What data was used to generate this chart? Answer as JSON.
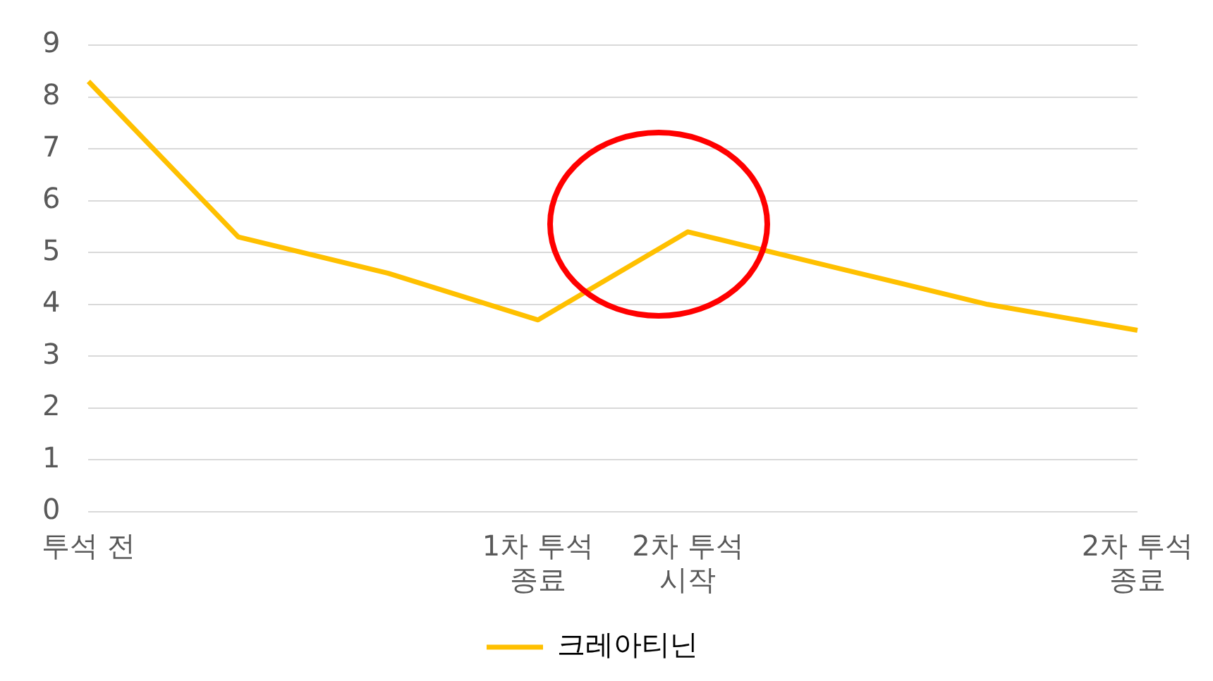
{
  "chart_data": {
    "type": "line",
    "categories": [
      "투석 전",
      null,
      null,
      "1차 투석 종료",
      "2차 투석 시작",
      null,
      null,
      "2차 투석 종료"
    ],
    "series": [
      {
        "name": "크레아티닌",
        "color": "#ffc000",
        "values": [
          8.3,
          5.3,
          4.6,
          3.7,
          5.4,
          4.7,
          4.0,
          3.5
        ]
      }
    ],
    "ylim": [
      0,
      9
    ],
    "yticks": [
      0,
      1,
      2,
      3,
      4,
      5,
      6,
      7,
      8,
      9
    ],
    "grid": "y",
    "legend": "bottom",
    "marker": "none",
    "line_style": "solid"
  }
}
